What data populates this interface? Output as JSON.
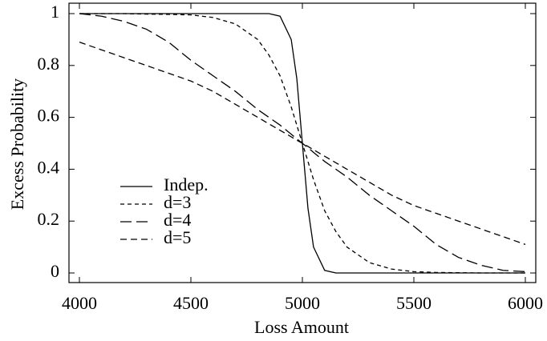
{
  "chart_data": {
    "type": "line",
    "x_label": "Loss Amount",
    "y_label": "Excess Probability",
    "x": [
      4000,
      4100,
      4200,
      4300,
      4400,
      4500,
      4600,
      4700,
      4800,
      4850,
      4900,
      4950,
      4975,
      5000,
      5025,
      5050,
      5100,
      5150,
      5200,
      5300,
      5400,
      5500,
      5600,
      5700,
      5800,
      5900,
      6000
    ],
    "series": [
      {
        "name": "Indep.",
        "color": "#000000",
        "dash": "solid",
        "values": [
          1,
          1,
          1,
          1,
          1,
          1,
          1,
          1,
          1,
          1,
          0.99,
          0.9,
          0.75,
          0.5,
          0.25,
          0.1,
          0.01,
          0,
          0,
          0,
          0,
          0,
          0,
          0,
          0,
          0,
          0
        ]
      },
      {
        "name": "d=3",
        "color": "#000000",
        "dash": "short",
        "values": [
          1,
          1,
          1,
          0.998,
          0.997,
          0.995,
          0.985,
          0.96,
          0.9,
          0.84,
          0.76,
          0.64,
          0.57,
          0.5,
          0.43,
          0.36,
          0.24,
          0.16,
          0.1,
          0.04,
          0.015,
          0.005,
          0.002,
          0.001,
          0,
          0,
          0
        ]
      },
      {
        "name": "d=4",
        "color": "#000000",
        "dash": "long",
        "values": [
          1,
          0.99,
          0.97,
          0.94,
          0.89,
          0.82,
          0.76,
          0.7,
          0.63,
          0.6,
          0.57,
          0.535,
          0.517,
          0.5,
          0.483,
          0.465,
          0.43,
          0.4,
          0.37,
          0.3,
          0.24,
          0.18,
          0.11,
          0.06,
          0.03,
          0.01,
          0.005
        ]
      },
      {
        "name": "d=5",
        "color": "#000000",
        "dash": "medium",
        "values": [
          0.89,
          0.86,
          0.83,
          0.8,
          0.77,
          0.74,
          0.7,
          0.65,
          0.6,
          0.575,
          0.55,
          0.525,
          0.512,
          0.5,
          0.488,
          0.475,
          0.45,
          0.425,
          0.4,
          0.35,
          0.3,
          0.26,
          0.23,
          0.2,
          0.17,
          0.14,
          0.11
        ]
      }
    ],
    "xlim": [
      4000,
      6000
    ],
    "xticks": [
      4000,
      4500,
      5000,
      5500,
      6000
    ],
    "ylim": [
      0,
      1
    ],
    "yticks": [
      0,
      0.2,
      0.4,
      0.6,
      0.8,
      1
    ],
    "legend": "lower left",
    "grid": false
  }
}
